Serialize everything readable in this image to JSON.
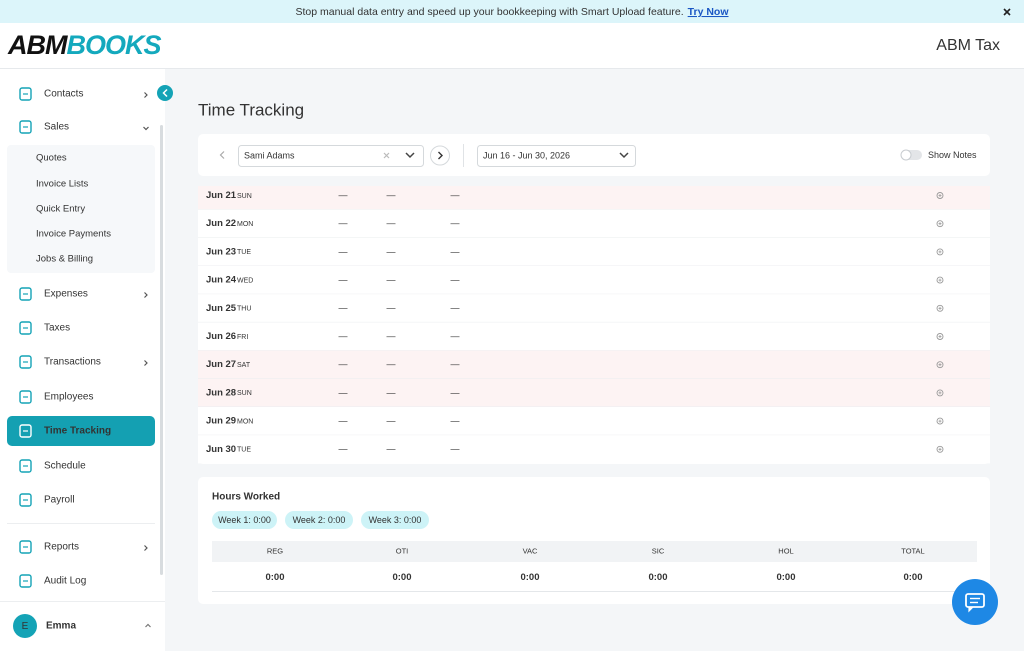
{
  "banner": {
    "message": "Stop manual data entry and speed up your bookkeeping with Smart Upload feature.",
    "link": "Try Now"
  },
  "header": {
    "logo": {
      "first": "ABM",
      "second": "BOOKS"
    },
    "company": "ABM Tax"
  },
  "sidebar": {
    "items": [
      {
        "label": "Contacts",
        "chevron": "right"
      },
      {
        "label": "Sales",
        "chevron": "down",
        "expanded": true,
        "children": [
          "Quotes",
          "Invoice Lists",
          "Quick Entry",
          "Invoice Payments",
          "Jobs & Billing"
        ]
      },
      {
        "label": "Expenses",
        "chevron": "right"
      },
      {
        "label": "Taxes"
      },
      {
        "label": "Transactions",
        "chevron": "right"
      },
      {
        "label": "Employees"
      },
      {
        "label": "Time Tracking",
        "active": true
      },
      {
        "label": "Schedule"
      },
      {
        "label": "Payroll"
      },
      {
        "label": "Reports",
        "chevron": "right"
      },
      {
        "label": "Audit Log"
      }
    ],
    "user": {
      "initial": "E",
      "name": "Emma"
    }
  },
  "page": {
    "title": "Time Tracking",
    "toolbar": {
      "employee": "Sami Adams",
      "date_range": "Jun 16 - Jun 30, 2026",
      "show_notes": "Show Notes",
      "show_notes_on": false
    },
    "rows": [
      {
        "date": "Jun 21",
        "day": "SUN",
        "weekend": true,
        "cells": [
          "—",
          "—",
          "—"
        ]
      },
      {
        "date": "Jun 22",
        "day": "MON",
        "weekend": false,
        "cells": [
          "—",
          "—",
          "—"
        ]
      },
      {
        "date": "Jun 23",
        "day": "TUE",
        "weekend": false,
        "cells": [
          "—",
          "—",
          "—"
        ]
      },
      {
        "date": "Jun 24",
        "day": "WED",
        "weekend": false,
        "cells": [
          "—",
          "—",
          "—"
        ]
      },
      {
        "date": "Jun 25",
        "day": "THU",
        "weekend": false,
        "cells": [
          "—",
          "—",
          "—"
        ]
      },
      {
        "date": "Jun 26",
        "day": "FRI",
        "weekend": false,
        "cells": [
          "—",
          "—",
          "—"
        ]
      },
      {
        "date": "Jun 27",
        "day": "SAT",
        "weekend": true,
        "cells": [
          "—",
          "—",
          "—"
        ]
      },
      {
        "date": "Jun 28",
        "day": "SUN",
        "weekend": true,
        "cells": [
          "—",
          "—",
          "—"
        ]
      },
      {
        "date": "Jun 29",
        "day": "MON",
        "weekend": false,
        "cells": [
          "—",
          "—",
          "—"
        ]
      },
      {
        "date": "Jun 30",
        "day": "TUE",
        "weekend": false,
        "cells": [
          "—",
          "—",
          "—"
        ]
      }
    ],
    "hours": {
      "title": "Hours Worked",
      "weeks": [
        "Week 1: 0:00",
        "Week 2: 0:00",
        "Week 3: 0:00"
      ],
      "columns": [
        "REG",
        "OTI",
        "VAC",
        "SIC",
        "HOL",
        "TOTAL"
      ],
      "values": [
        "0:00",
        "0:00",
        "0:00",
        "0:00",
        "0:00",
        "0:00"
      ]
    }
  }
}
